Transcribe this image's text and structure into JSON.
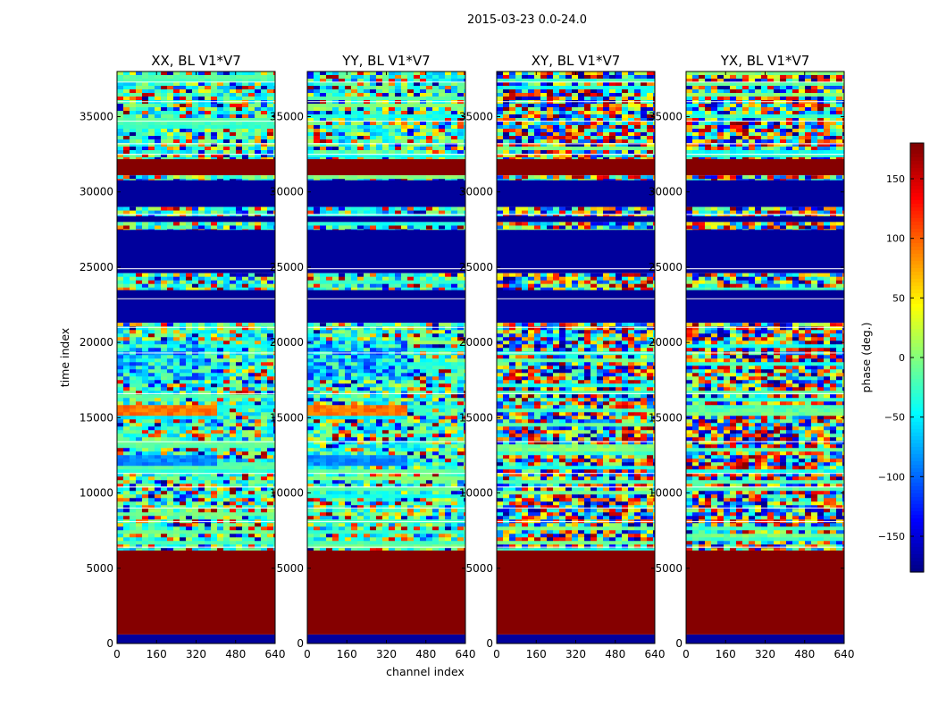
{
  "chart_data": {
    "type": "heatmap",
    "title": "2015-03-23 0.0-24.0",
    "xlabel": "channel index",
    "ylabel": "time index",
    "colorbar": {
      "label": "phase (deg.)",
      "range": [
        -180,
        180
      ],
      "ticks": [
        -150,
        -100,
        -50,
        0,
        50,
        100,
        150
      ],
      "tick_labels": [
        "−150",
        "−100",
        "−50",
        "0",
        "50",
        "100",
        "150"
      ],
      "colormap": "jet",
      "colors": [
        "#00007f",
        "#0000ff",
        "#007fff",
        "#00ffff",
        "#7fff7f",
        "#ffff00",
        "#ff7f00",
        "#ff0000",
        "#7f0000"
      ]
    },
    "xlim": [
      0,
      640
    ],
    "ylim": [
      0,
      38000
    ],
    "xticks": [
      0,
      160,
      320,
      480,
      640
    ],
    "yticks": [
      0,
      5000,
      10000,
      15000,
      20000,
      25000,
      30000,
      35000
    ],
    "panels": [
      {
        "title": "XX, BL V1*V7",
        "pattern": "structured"
      },
      {
        "title": "YY, BL V1*V7",
        "pattern": "structured"
      },
      {
        "title": "XY, BL V1*V7",
        "pattern": "noise"
      },
      {
        "title": "YX, BL V1*V7",
        "pattern": "noise"
      }
    ],
    "bands": [
      {
        "t": [
          0,
          600
        ],
        "phase": -170
      },
      {
        "t": [
          600,
          6200
        ],
        "phase": 178
      },
      {
        "t": [
          6200,
          21300
        ],
        "phase": null
      },
      {
        "t": [
          21300,
          22800
        ],
        "phase": -168
      },
      {
        "t": [
          22800,
          23500
        ],
        "phase": -172
      },
      {
        "t": [
          23500,
          24600
        ],
        "phase": null
      },
      {
        "t": [
          24600,
          27500
        ],
        "phase": -170
      },
      {
        "t": [
          27500,
          28000
        ],
        "phase": null
      },
      {
        "t": [
          28000,
          28400
        ],
        "phase": -172
      },
      {
        "t": [
          28400,
          29000
        ],
        "phase": null
      },
      {
        "t": [
          29000,
          30800
        ],
        "phase": -170
      },
      {
        "t": [
          30800,
          31100
        ],
        "phase": null
      },
      {
        "t": [
          31100,
          32200
        ],
        "phase": 178
      },
      {
        "t": [
          32200,
          38000
        ],
        "phase": null
      }
    ]
  }
}
